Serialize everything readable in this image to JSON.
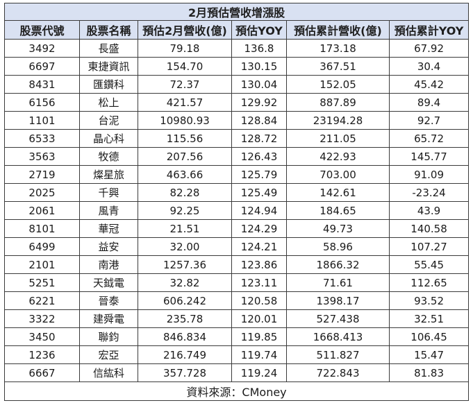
{
  "title": "2月預估營收增漲股",
  "columns": [
    "股票代號",
    "股票名稱",
    "預估2月營收(億)",
    "預估YOY",
    "預估累計營收(億)",
    "預估累計YOY"
  ],
  "colors": {
    "positive": "#c00000",
    "negative": "#548235",
    "header_bg": "#d9e1f2"
  },
  "rows": [
    [
      "3492",
      "長盛",
      "79.18",
      "136.8",
      "173.18",
      "67.92"
    ],
    [
      "6697",
      "東捷資訊",
      "154.70",
      "130.15",
      "367.51",
      "30.4"
    ],
    [
      "8431",
      "匯鑽科",
      "72.37",
      "130.04",
      "152.05",
      "45.42"
    ],
    [
      "6156",
      "松上",
      "421.57",
      "129.92",
      "887.89",
      "89.4"
    ],
    [
      "1101",
      "台泥",
      "10980.93",
      "128.84",
      "23194.28",
      "92.7"
    ],
    [
      "6533",
      "晶心科",
      "115.56",
      "128.72",
      "211.05",
      "65.72"
    ],
    [
      "3563",
      "牧德",
      "207.56",
      "126.43",
      "422.93",
      "145.77"
    ],
    [
      "2719",
      "燦星旅",
      "463.66",
      "125.79",
      "703.00",
      "91.09"
    ],
    [
      "2025",
      "千興",
      "82.28",
      "125.49",
      "142.61",
      "-23.24"
    ],
    [
      "2061",
      "風青",
      "92.25",
      "124.94",
      "184.65",
      "43.9"
    ],
    [
      "8101",
      "華冠",
      "21.51",
      "124.29",
      "49.73",
      "140.58"
    ],
    [
      "6499",
      "益安",
      "32.00",
      "124.21",
      "58.96",
      "107.27"
    ],
    [
      "2101",
      "南港",
      "1257.36",
      "123.86",
      "1866.32",
      "55.45"
    ],
    [
      "5251",
      "天鉞電",
      "32.82",
      "123.11",
      "71.61",
      "112.65"
    ],
    [
      "6221",
      "晉泰",
      "606.242",
      "120.58",
      "1398.17",
      "93.52"
    ],
    [
      "3322",
      "建舜電",
      "235.78",
      "120.01",
      "527.438",
      "32.51"
    ],
    [
      "3450",
      "聯鈞",
      "846.834",
      "119.85",
      "1668.413",
      "106.45"
    ],
    [
      "1236",
      "宏亞",
      "216.749",
      "119.74",
      "511.827",
      "15.47"
    ],
    [
      "6667",
      "信紘科",
      "357.728",
      "119.24",
      "722.843",
      "81.83"
    ]
  ],
  "source": "資料來源：CMoney"
}
